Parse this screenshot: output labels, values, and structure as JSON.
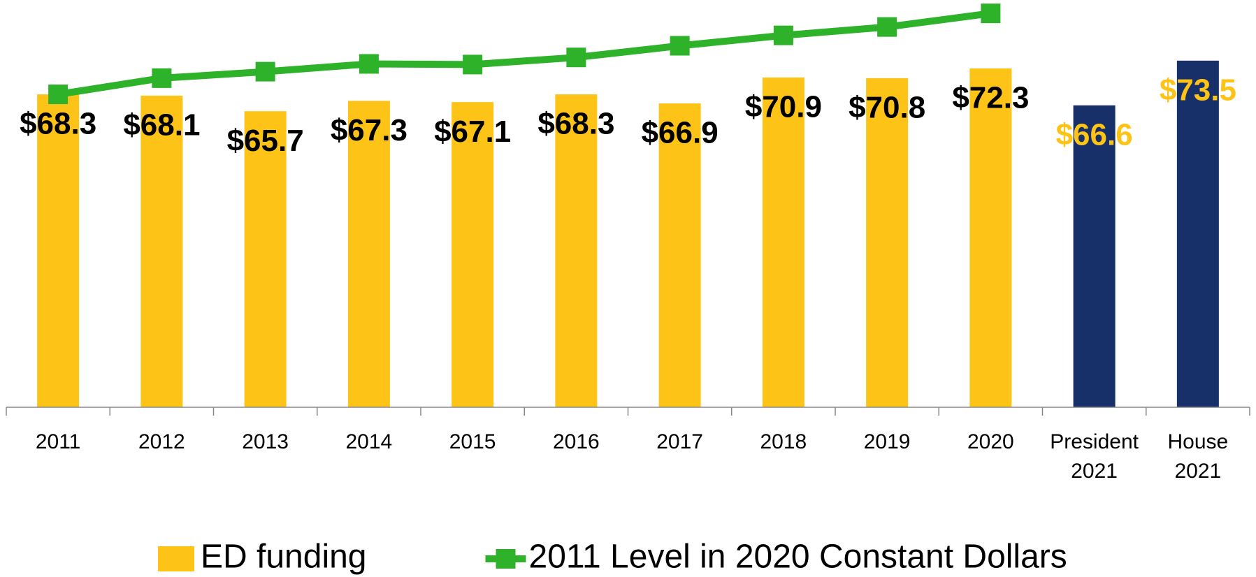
{
  "chart_data": {
    "type": "bar",
    "categories": [
      "2011",
      "2012",
      "2013",
      "2014",
      "2015",
      "2016",
      "2017",
      "2018",
      "2019",
      "2020",
      "President 2021",
      "House 2021"
    ],
    "series": [
      {
        "name": "ED funding",
        "type": "bar",
        "color": "#FDC417",
        "colors": [
          "#FDC417",
          "#FDC417",
          "#FDC417",
          "#FDC417",
          "#FDC417",
          "#FDC417",
          "#FDC417",
          "#FDC417",
          "#FDC417",
          "#FDC417",
          "#17306A",
          "#17306A"
        ],
        "label_colors": [
          "#000000",
          "#000000",
          "#000000",
          "#000000",
          "#000000",
          "#000000",
          "#000000",
          "#000000",
          "#000000",
          "#000000",
          "#FDC417",
          "#FDC417"
        ],
        "values": [
          68.3,
          68.1,
          65.7,
          67.3,
          67.1,
          68.3,
          66.9,
          70.9,
          70.8,
          72.3,
          66.6,
          73.5
        ],
        "value_labels": [
          "$68.3",
          "$68.1",
          "$65.7",
          "$67.3",
          "$67.1",
          "$68.3",
          "$66.9",
          "$70.9",
          "$70.8",
          "$72.3",
          "$66.6",
          "$73.5"
        ]
      },
      {
        "name": "2011 Level in 2020 Constant Dollars",
        "type": "line",
        "color": "#2DB22A",
        "values": [
          68.3,
          70.8,
          71.8,
          73.0,
          72.9,
          74.0,
          75.8,
          77.4,
          78.7,
          80.8,
          null,
          null
        ]
      }
    ],
    "ylim": [
      20,
      82
    ],
    "legend": "bottom"
  }
}
